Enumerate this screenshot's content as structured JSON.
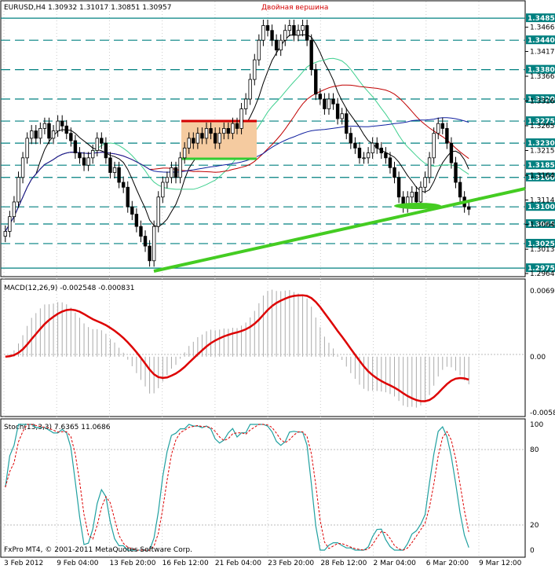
{
  "chart_data": [
    {
      "type": "candlestick",
      "header": "EURUSD,H4  1.30932 1.31017 1.30851 1.30957",
      "annotation": "Двойная вершина",
      "ylim": [
        1.2964,
        1.349
      ],
      "level_tags": [
        "1.34850",
        "1.34400",
        "1.33800",
        "1.33200",
        "1.32750",
        "1.32300",
        "1.31850",
        "1.31600",
        "1.31000",
        "1.30650",
        "1.30250",
        "1.29750"
      ],
      "level_colors": {
        "1.34850": "#008080",
        "1.34400": "#008080",
        "1.33800": "#008080",
        "1.33200": "#008080",
        "1.32750": "#008080",
        "1.32300": "#008080",
        "1.31850": "#008080",
        "1.31600": "#008080",
        "1.31000": "#008080",
        "1.30650": "#008080",
        "1.30250": "#008080",
        "1.29750": "#008080"
      },
      "scale_labels": [
        "1.34665",
        "1.34170",
        "1.33665",
        "1.33160",
        "1.32655",
        "1.32150",
        "1.31645",
        "1.31140",
        "1.30640",
        "1.30135",
        "1.29640"
      ],
      "x_labels": [
        "3 Feb 2012",
        "9 Feb 04:00",
        "13 Feb 20:00",
        "16 Feb 12:00",
        "21 Feb 04:00",
        "23 Feb 20:00",
        "28 Feb 12:00",
        "2 Mar 04:00",
        "6 Mar 20:00",
        "9 Mar 12:00"
      ],
      "close": [
        1.305,
        1.308,
        1.311,
        1.316,
        1.32,
        1.324,
        1.3255,
        1.324,
        1.326,
        1.327,
        1.324,
        1.3255,
        1.3275,
        1.3265,
        1.325,
        1.3235,
        1.321,
        1.32,
        1.3185,
        1.32,
        1.3215,
        1.324,
        1.323,
        1.32,
        1.317,
        1.318,
        1.315,
        1.314,
        1.31,
        1.3085,
        1.306,
        1.304,
        1.302,
        1.299,
        1.306,
        1.312,
        1.315,
        1.316,
        1.318,
        1.316,
        1.32,
        1.322,
        1.324,
        1.323,
        1.325,
        1.324,
        1.326,
        1.325,
        1.323,
        1.325,
        1.326,
        1.325,
        1.327,
        1.326,
        1.33,
        1.332,
        1.336,
        1.34,
        1.344,
        1.347,
        1.346,
        1.344,
        1.342,
        1.344,
        1.346,
        1.347,
        1.345,
        1.346,
        1.347,
        1.344,
        1.338,
        1.333,
        1.332,
        1.33,
        1.332,
        1.331,
        1.328,
        1.329,
        1.325,
        1.323,
        1.322,
        1.32,
        1.32,
        1.321,
        1.323,
        1.322,
        1.321,
        1.32,
        1.318,
        1.316,
        1.312,
        1.31,
        1.312,
        1.313,
        1.311,
        1.314,
        1.316,
        1.32,
        1.325,
        1.327,
        1.326,
        1.323,
        1.319,
        1.315,
        1.312,
        1.31,
        1.3095
      ]
    },
    {
      "type": "macd",
      "header": "MACD(12,26,9) -0.002548 -0.000831",
      "ylim": [
        -0.00587,
        0.00692
      ],
      "scale_labels": [
        "0.00692",
        "0.00",
        "-0.00587"
      ]
    },
    {
      "type": "stochastic",
      "header": "Stoch(13,3,3) 7.6365 11.0686",
      "ylim": [
        0,
        100
      ],
      "scale_labels": [
        "100",
        "80",
        "20",
        "0"
      ]
    }
  ],
  "footer": "FxPro MT4, © 2001-2011 MetaQuotes Software Corp."
}
